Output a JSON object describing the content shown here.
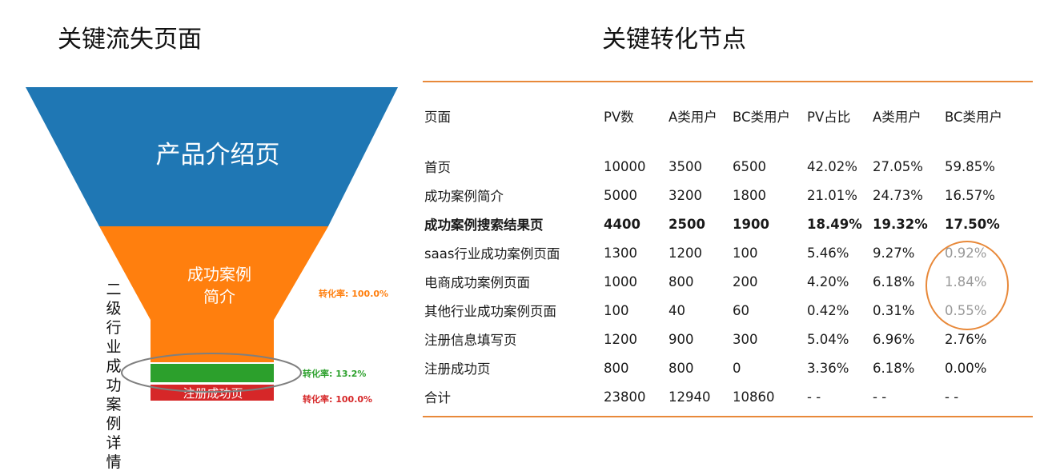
{
  "left_title": "关键流失页面",
  "right_title": "关键转化节点",
  "funnel": {
    "stages": [
      {
        "label": "产品介绍页",
        "color": "#1f77b4"
      },
      {
        "label": "成功案例",
        "label2": "简介",
        "color": "#ff7f0e"
      },
      {
        "label": "",
        "color": "#2ca02c"
      },
      {
        "label": "注册成功页",
        "color": "#d62728"
      }
    ],
    "conversions": [
      {
        "text": "转化率: 100.0%",
        "color": "#ff7f0e"
      },
      {
        "text": "转化率: 13.2%",
        "color": "#2ca02c"
      },
      {
        "text": "转化率: 100.0%",
        "color": "#d62728"
      }
    ],
    "side_label": "二级行业成功案例详情"
  },
  "table": {
    "headers": [
      "页面",
      "PV数",
      "A类用户",
      "BC类用户",
      "PV占比",
      "A类用户",
      "BC类用户"
    ],
    "rows": [
      [
        "首页",
        "10000",
        "3500",
        "6500",
        "42.02%",
        "27.05%",
        "59.85%"
      ],
      [
        "成功案例简介",
        "5000",
        "3200",
        "1800",
        "21.01%",
        "24.73%",
        "16.57%"
      ],
      [
        "成功案例搜索结果页",
        "4400",
        "2500",
        "1900",
        "18.49%",
        "19.32%",
        "17.50%"
      ],
      [
        "saas行业成功案例页面",
        "1300",
        "1200",
        "100",
        "5.46%",
        "9.27%",
        "0.92%"
      ],
      [
        "电商成功案例页面",
        "1000",
        "800",
        "200",
        "4.20%",
        "6.18%",
        "1.84%"
      ],
      [
        "其他行业成功案例页面",
        "100",
        "40",
        "60",
        "0.42%",
        "0.31%",
        "0.55%"
      ],
      [
        "注册信息填写页",
        "1200",
        "900",
        "300",
        "5.04%",
        "6.96%",
        "2.76%"
      ],
      [
        "注册成功页",
        "800",
        "800",
        "0",
        "3.36%",
        "6.18%",
        "0.00%"
      ],
      [
        "合计",
        "23800",
        "12940",
        "10860",
        "- -",
        "- -",
        "- -"
      ]
    ],
    "highlight_row": 2,
    "accent_color": "#e8893a"
  }
}
